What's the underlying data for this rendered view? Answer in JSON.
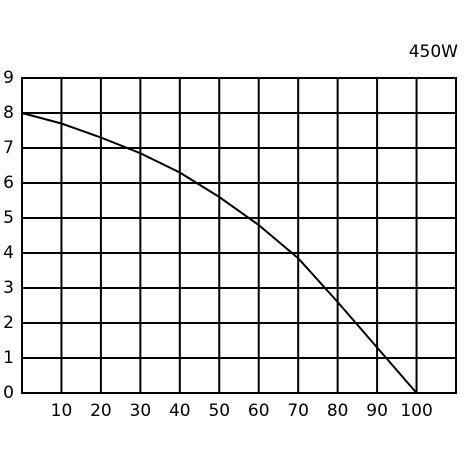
{
  "chart_data": {
    "type": "line",
    "title": "450W",
    "x": [
      0,
      10,
      20,
      30,
      40,
      50,
      60,
      70,
      80,
      90,
      100
    ],
    "series": [
      {
        "color": "#000000",
        "values": [
          8,
          7.7,
          7.3,
          6.85,
          6.3,
          5.6,
          4.8,
          3.85,
          2.6,
          1.3,
          0
        ]
      }
    ],
    "xlim": [
      0,
      110
    ],
    "xticks": [
      10,
      20,
      30,
      40,
      50,
      60,
      70,
      80,
      90,
      100
    ],
    "ylim": [
      0,
      9
    ],
    "yticks": [
      0,
      1,
      2,
      3,
      4,
      5,
      6,
      7,
      8,
      9
    ],
    "grid": true
  }
}
